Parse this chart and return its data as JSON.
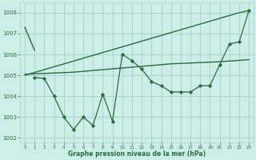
{
  "bg_color": "#cceee8",
  "grid_color": "#aad4cc",
  "line_color": "#2d6b3c",
  "marker_color": "#2d6b3c",
  "xlabel": "Graphe pression niveau de la mer (hPa)",
  "xlabel_color": "#2d6b3c",
  "ylim": [
    1001.8,
    1008.5
  ],
  "xlim": [
    -0.5,
    23.5
  ],
  "yticks": [
    1002,
    1003,
    1004,
    1005,
    1006,
    1007,
    1008
  ],
  "xticks": [
    0,
    1,
    2,
    3,
    4,
    5,
    6,
    7,
    8,
    9,
    10,
    11,
    12,
    13,
    14,
    15,
    16,
    17,
    18,
    19,
    20,
    21,
    22,
    23
  ],
  "series": [
    {
      "x": [
        0,
        22,
        23
      ],
      "y": [
        1005.0,
        1008.0,
        1008.1
      ],
      "marker": false,
      "lw": 1.0
    },
    {
      "x": [
        0,
        5,
        10,
        15,
        20,
        23
      ],
      "y": [
        1005.05,
        1005.15,
        1005.35,
        1005.55,
        1005.65,
        1005.75
      ],
      "marker": false,
      "lw": 1.0
    },
    {
      "x": [
        0,
        1
      ],
      "y": [
        1007.3,
        1006.2
      ],
      "marker": false,
      "lw": 1.0
    },
    {
      "x": [
        1,
        2,
        3,
        4,
        5,
        6,
        7,
        8,
        9,
        10,
        11,
        12,
        13,
        14,
        15,
        16,
        17,
        18,
        19,
        20,
        21,
        22,
        23
      ],
      "y": [
        1004.9,
        1004.85,
        1004.0,
        1003.0,
        1002.4,
        1003.0,
        1002.6,
        1004.1,
        1002.8,
        1006.0,
        1005.7,
        1005.3,
        1004.7,
        1004.5,
        1004.2,
        1004.2,
        1004.2,
        1004.5,
        1004.5,
        1005.5,
        1006.5,
        1006.6,
        1008.1
      ],
      "marker": true,
      "lw": 0.9
    }
  ]
}
